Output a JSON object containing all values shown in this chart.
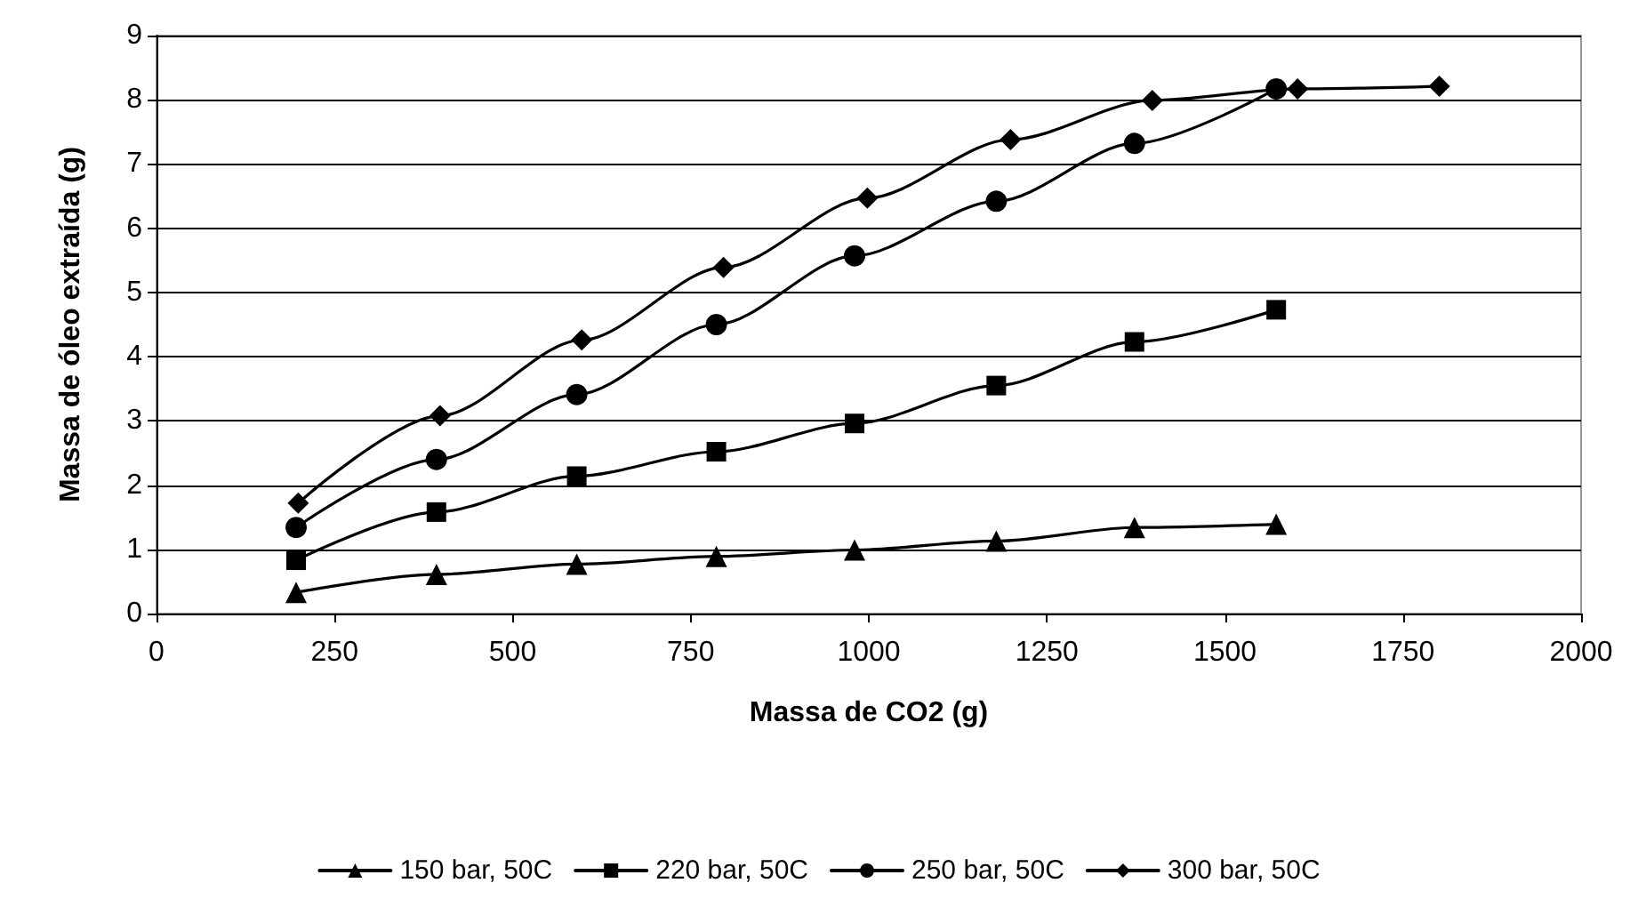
{
  "chart_data": {
    "type": "line",
    "xlabel": "Massa de CO2 (g)",
    "ylabel": "Massa de óleo extraída (g)",
    "xlim": [
      0,
      2000
    ],
    "xticks": [
      0,
      250,
      500,
      750,
      1000,
      1250,
      1500,
      1750,
      2000
    ],
    "ylim": [
      0,
      9
    ],
    "yticks": [
      0,
      1,
      2,
      3,
      4,
      5,
      6,
      7,
      8,
      9
    ],
    "grid": "y",
    "legend": "bottom",
    "line_style": "solid",
    "series": [
      {
        "name": "150 bar, 50C",
        "color": "#000000",
        "marker": "triangle",
        "x": [
          196,
          393,
          590,
          786,
          980,
          1179,
          1373,
          1572
        ],
        "values": [
          0.33,
          0.61,
          0.77,
          0.89,
          0.99,
          1.13,
          1.34,
          1.39
        ]
      },
      {
        "name": "220 bar, 50C",
        "color": "#000000",
        "marker": "square",
        "x": [
          196,
          393,
          590,
          786,
          980,
          1179,
          1373,
          1572
        ],
        "values": [
          0.83,
          1.58,
          2.14,
          2.52,
          2.96,
          3.55,
          4.23,
          4.73
        ]
      },
      {
        "name": "250 bar, 50C",
        "color": "#000000",
        "marker": "circle",
        "x": [
          196,
          393,
          590,
          786,
          980,
          1179,
          1373,
          1572
        ],
        "values": [
          1.34,
          2.4,
          3.41,
          4.5,
          5.57,
          6.42,
          7.32,
          8.17
        ]
      },
      {
        "name": "300 bar, 50C",
        "color": "#000000",
        "marker": "diamond",
        "x": [
          199,
          398,
          597,
          796,
          998,
          1199,
          1398,
          1602,
          1801
        ],
        "values": [
          1.72,
          3.08,
          4.26,
          5.39,
          6.47,
          7.38,
          7.99,
          8.17,
          8.21
        ]
      }
    ]
  }
}
